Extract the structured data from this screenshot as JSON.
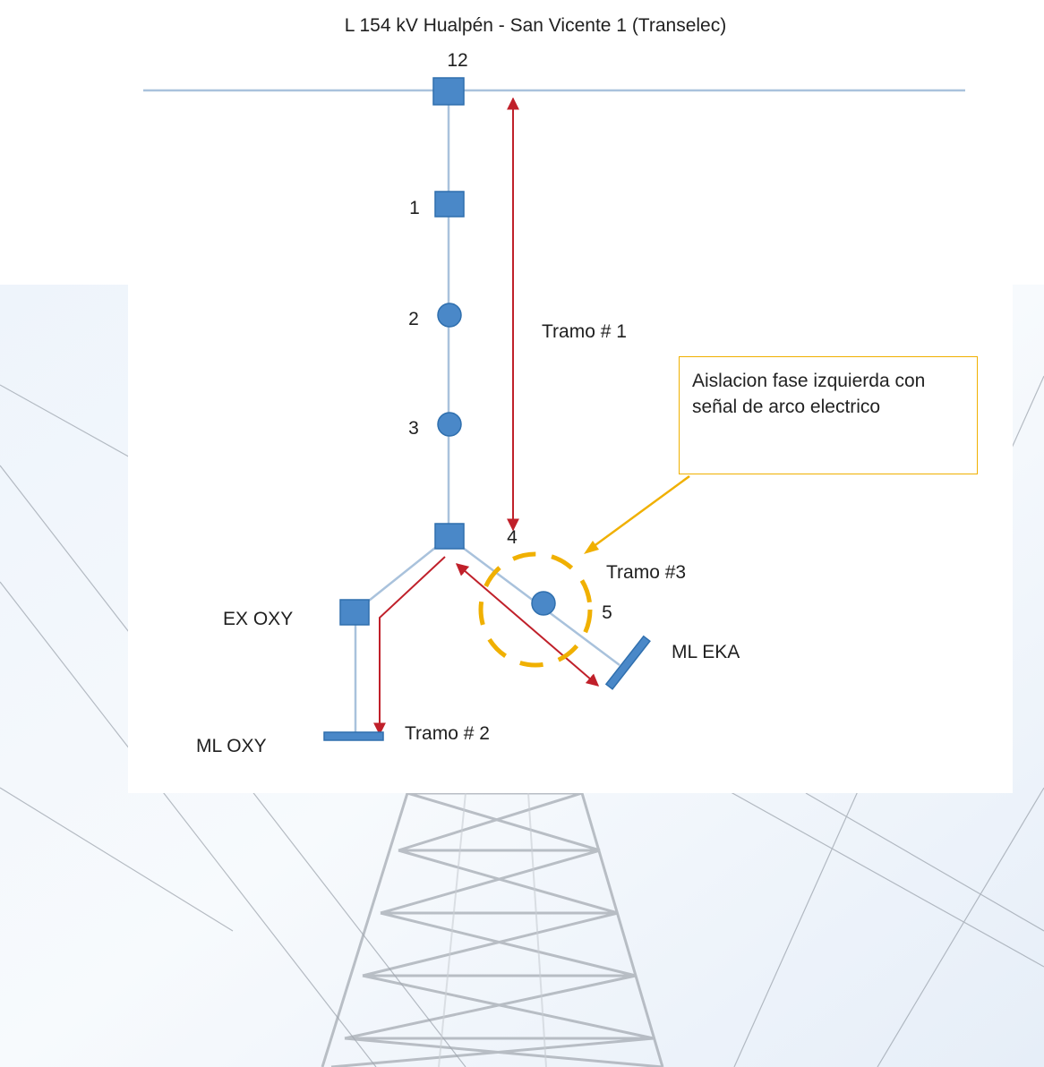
{
  "title": "L 154 kV Hualpén - San Vicente 1 (Transelec)",
  "colors": {
    "line": "#a9c2dc",
    "node_fill": "#4a88c8",
    "node_stroke": "#2f6fae",
    "arrow": "#c0202a",
    "highlight": "#f0b000"
  },
  "nodes": {
    "n12": "12",
    "n1": "1",
    "n2": "2",
    "n3": "3",
    "n4": "4",
    "n5": "5",
    "ex_oxy": "EX OXY",
    "ml_oxy": "ML OXY",
    "ml_eka": "ML EKA"
  },
  "sections": {
    "tramo1": "Tramo # 1",
    "tramo2": "Tramo # 2",
    "tramo3": "Tramo #3"
  },
  "callout": {
    "text": "Aislacion fase izquierda con señal de arco electrico"
  },
  "background": {
    "icon": "transmission-tower-photo"
  }
}
